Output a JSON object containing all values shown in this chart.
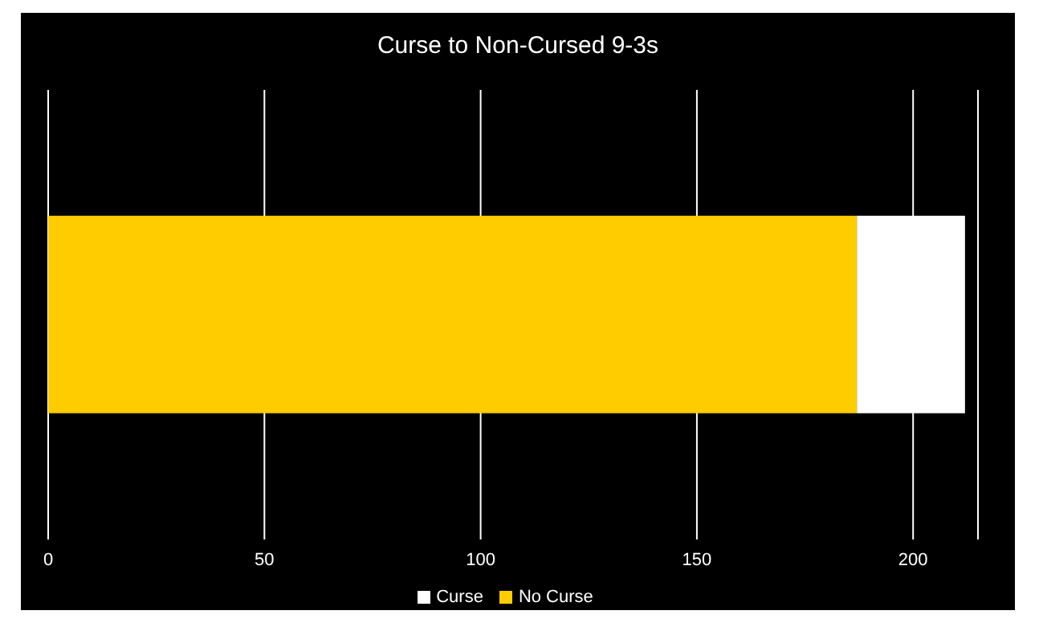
{
  "chart_data": {
    "type": "bar",
    "orientation": "horizontal",
    "stacked": true,
    "title": "Curse to Non-Cursed 9-3s",
    "categories": [
      null
    ],
    "series": [
      {
        "name": "No Curse",
        "color": "#ffcc00",
        "values": [
          187
        ]
      },
      {
        "name": "Curse",
        "color": "#ffffff",
        "values": [
          25
        ]
      }
    ],
    "xlim": [
      0,
      215
    ],
    "xticks": [
      0,
      50,
      100,
      150,
      200
    ],
    "grid": "x",
    "legend": "bottom"
  }
}
